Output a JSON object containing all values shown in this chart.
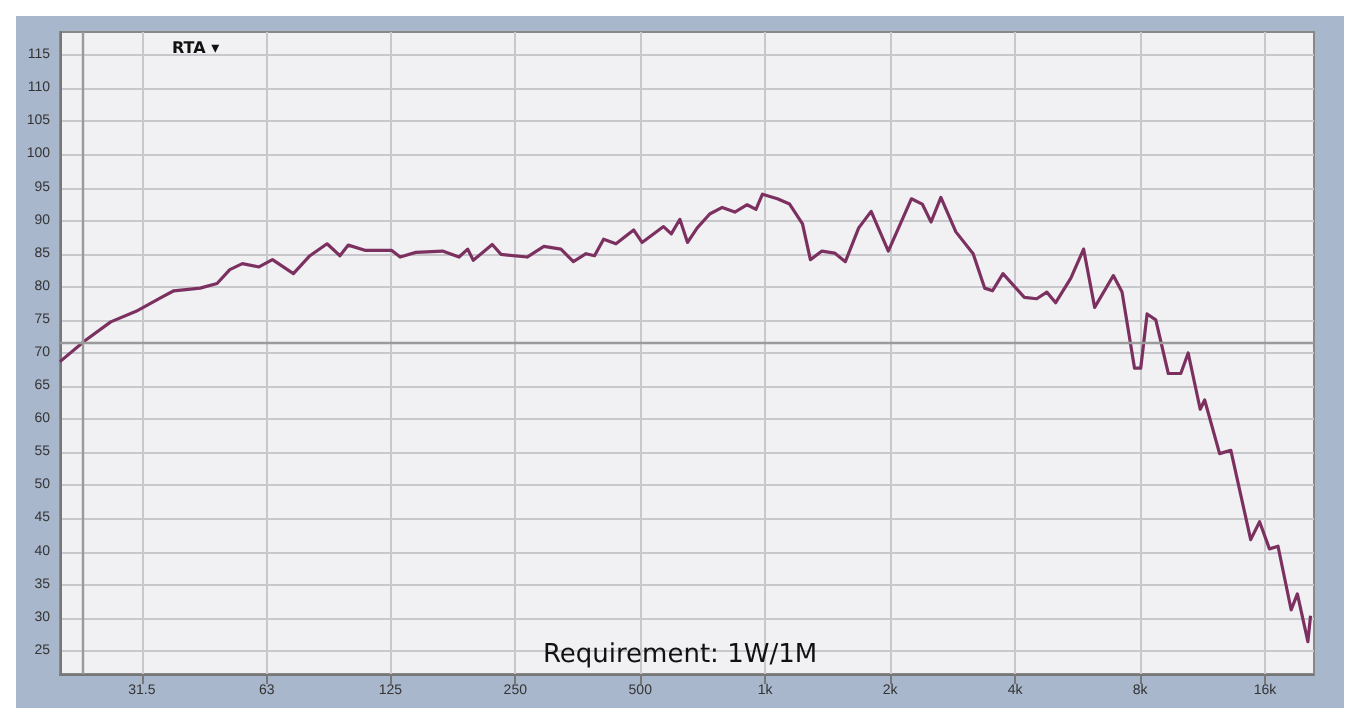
{
  "chart_data": {
    "type": "line",
    "log": "x",
    "xlim": [
      20,
      21000
    ],
    "ylim": [
      21.5,
      118.5
    ],
    "xticks": [
      31.5,
      63,
      125,
      250,
      500,
      {
        "value": 1000,
        "label": "1k"
      },
      {
        "value": 2000,
        "label": "2k"
      },
      {
        "value": 4000,
        "label": "4k"
      },
      {
        "value": 8000,
        "label": "8k"
      },
      {
        "value": 16000,
        "label": "16k"
      }
    ],
    "yticks": [
      25,
      30,
      35,
      40,
      45,
      50,
      55,
      60,
      65,
      70,
      75,
      80,
      85,
      90,
      95,
      100,
      105,
      110,
      115
    ],
    "grid": true,
    "marker": "none",
    "line_style": "solid",
    "ref_lines": [
      {
        "axis": "y",
        "value": 71.5,
        "color": "#9a9a9a"
      },
      {
        "axis": "x",
        "value": 22.6,
        "color": "#9a9a9a"
      }
    ],
    "annotations": [
      "RTA ▾",
      "Requirement: 1W/1M"
    ],
    "series": [
      {
        "color": "#7b3060",
        "x": [
          20,
          23,
          26.5,
          30.5,
          35.1,
          37.6,
          43.5,
          47.8,
          51.3,
          55,
          60.3,
          65,
          73,
          80,
          88,
          94.5,
          99,
          109,
          126,
          132,
          144,
          167,
          183,
          192,
          198,
          220,
          231,
          267,
          293,
          322,
          345,
          370,
          388,
          408,
          437,
          482,
          505,
          569,
          594,
          623,
          650,
          686,
          735,
          788,
          845,
          905,
          950,
          985,
          1070,
          1145,
          1230,
          1285,
          1370,
          1470,
          1560,
          1680,
          1800,
          1980,
          2250,
          2390,
          2510,
          2650,
          2880,
          3170,
          3380,
          3530,
          3740,
          4210,
          4510,
          4770,
          5010,
          5450,
          5850,
          6220,
          6900,
          7240,
          7760,
          8030,
          8320,
          8730,
          9360,
          10030,
          10450,
          11170,
          11450,
          12440,
          13240,
          14780,
          15530,
          16400,
          17200,
          18500,
          19150,
          20300,
          20600
        ],
        "values": [
          68.7,
          71.9,
          74.7,
          76.3,
          78.4,
          79.4,
          79.8,
          80.5,
          82.6,
          83.5,
          83,
          84.1,
          82,
          84.7,
          86.5,
          84.7,
          86.3,
          85.5,
          85.5,
          84.5,
          85.2,
          85.4,
          84.5,
          85.7,
          84,
          86.4,
          84.9,
          84.5,
          86.1,
          85.7,
          83.8,
          85,
          84.7,
          87.2,
          86.5,
          88.6,
          86.7,
          89.1,
          88,
          90.2,
          86.7,
          88.9,
          91,
          92,
          91.3,
          92.4,
          91.7,
          94,
          93.3,
          92.5,
          89.5,
          84.1,
          85.4,
          85.1,
          83.8,
          88.9,
          91.4,
          85.4,
          93.3,
          92.5,
          89.8,
          93.5,
          88.3,
          85,
          79.8,
          79.4,
          82,
          78.4,
          78.2,
          79.2,
          77.6,
          81.3,
          85.7,
          76.9,
          81.7,
          79.2,
          67.7,
          67.7,
          75.9,
          75,
          66.9,
          66.9,
          70,
          61.5,
          62.9,
          54.8,
          55.3,
          41.8,
          44.5,
          40.4,
          40.8,
          31.2,
          33.6,
          26.4,
          30.3
        ]
      }
    ]
  }
}
